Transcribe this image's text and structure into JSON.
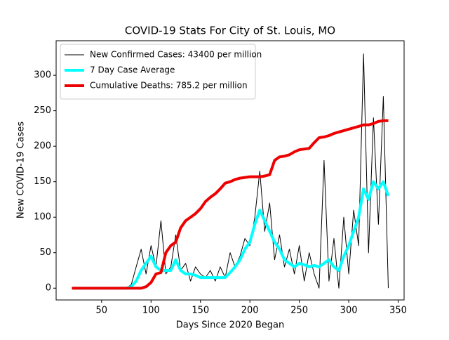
{
  "chart_data": {
    "type": "line",
    "title": "COVID-19 Stats For City of St. Louis, MO",
    "x_label": "Days Since 2020 Began",
    "y_label": "New COVID-19 Cases",
    "x": [
      20,
      25,
      30,
      35,
      40,
      45,
      50,
      55,
      60,
      65,
      70,
      75,
      80,
      85,
      90,
      95,
      100,
      105,
      110,
      115,
      120,
      125,
      130,
      135,
      140,
      145,
      150,
      155,
      160,
      165,
      170,
      175,
      180,
      185,
      190,
      195,
      200,
      205,
      210,
      215,
      220,
      225,
      230,
      235,
      240,
      245,
      250,
      255,
      260,
      265,
      270,
      275,
      280,
      285,
      290,
      295,
      300,
      305,
      310,
      315,
      320,
      325,
      330,
      335,
      340
    ],
    "series": [
      {
        "name": "New Confirmed Cases: 43400 per million",
        "color": "#000000",
        "line_width": 1,
        "values": [
          0,
          0,
          0,
          0,
          0,
          0,
          0,
          0,
          0,
          0,
          0,
          0,
          5,
          30,
          55,
          20,
          60,
          30,
          95,
          20,
          30,
          75,
          25,
          35,
          10,
          30,
          20,
          15,
          25,
          10,
          30,
          15,
          50,
          30,
          45,
          70,
          60,
          100,
          165,
          80,
          120,
          40,
          75,
          30,
          55,
          20,
          60,
          10,
          50,
          20,
          0,
          180,
          10,
          70,
          0,
          100,
          20,
          110,
          60,
          330,
          50,
          240,
          90,
          270,
          0
        ]
      },
      {
        "name": "7 Day Case Average",
        "color": "#00ffff",
        "line_width": 4,
        "values": [
          0,
          0,
          0,
          0,
          0,
          0,
          0,
          0,
          0,
          0,
          0,
          0,
          2,
          10,
          25,
          35,
          45,
          30,
          25,
          25,
          25,
          40,
          25,
          20,
          20,
          18,
          15,
          15,
          15,
          15,
          15,
          15,
          22,
          30,
          40,
          55,
          65,
          90,
          110,
          95,
          80,
          65,
          55,
          40,
          35,
          30,
          35,
          33,
          30,
          32,
          30,
          35,
          40,
          30,
          25,
          45,
          60,
          80,
          100,
          140,
          125,
          150,
          140,
          150,
          130
        ]
      },
      {
        "name": "Cumulative Deaths: 785.2 per million",
        "color": "#ee0000",
        "line_width": 4,
        "values": [
          0,
          0,
          0,
          0,
          0,
          0,
          0,
          0,
          0,
          0,
          0,
          0,
          0,
          0,
          0,
          2,
          8,
          20,
          22,
          50,
          60,
          65,
          85,
          95,
          100,
          105,
          112,
          122,
          128,
          133,
          140,
          148,
          150,
          153,
          155,
          156,
          157,
          157,
          157,
          158,
          160,
          180,
          185,
          186,
          188,
          192,
          195,
          196,
          197,
          205,
          212,
          213,
          215,
          218,
          220,
          222,
          224,
          226,
          228,
          230,
          230,
          232,
          235,
          236,
          236
        ]
      }
    ],
    "xlim": [
      4,
      356
    ],
    "xticks": [
      50,
      100,
      150,
      200,
      250,
      300,
      350
    ],
    "ylim": [
      -16.6,
      348.6
    ],
    "yticks": [
      0,
      50,
      100,
      150,
      200,
      250,
      300
    ],
    "legend": "upper left"
  }
}
